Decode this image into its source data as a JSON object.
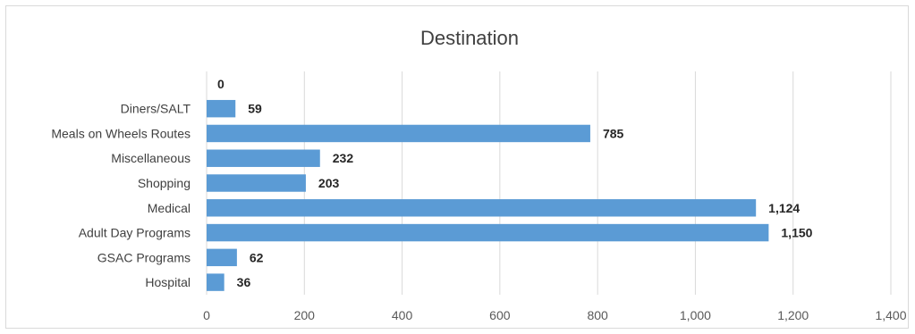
{
  "chart_data": {
    "type": "bar",
    "orientation": "horizontal",
    "title": "Destination",
    "xlabel": "",
    "ylabel": "",
    "categories": [
      "",
      "Diners/SALT",
      "Meals on Wheels Routes",
      "Miscellaneous",
      "Shopping",
      "Medical",
      "Adult Day Programs",
      "GSAC Programs",
      "Hospital"
    ],
    "values": [
      0,
      59,
      785,
      232,
      203,
      1124,
      1150,
      62,
      36
    ],
    "data_labels": [
      "0",
      "59",
      "785",
      "232",
      "203",
      "1,124",
      "1,150",
      "62",
      "36"
    ],
    "xlim": [
      0,
      1400
    ],
    "x_ticks": [
      0,
      200,
      400,
      600,
      800,
      1000,
      1200,
      1400
    ],
    "x_tick_labels": [
      "0",
      "200",
      "400",
      "600",
      "800",
      "1,000",
      "1,200",
      "1,400"
    ],
    "grid": true,
    "legend": "none",
    "bar_color": "#5b9bd5"
  }
}
